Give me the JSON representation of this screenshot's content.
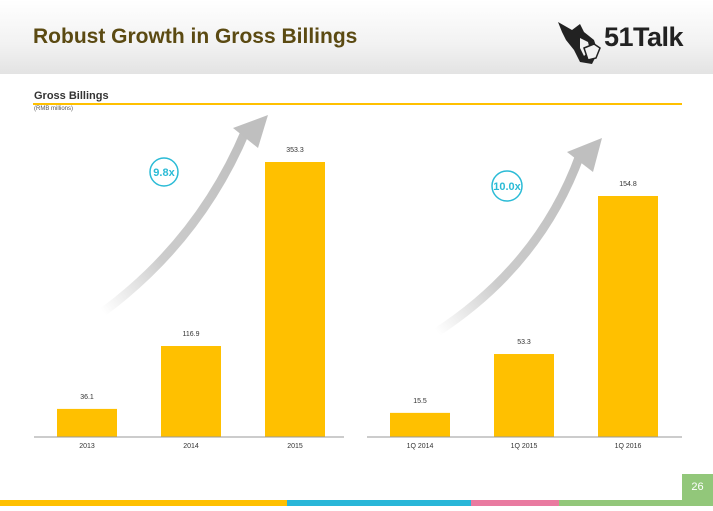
{
  "slide": {
    "title": "Robust Growth in Gross Billings",
    "logo_text": "51Talk",
    "page_number": "26"
  },
  "section": {
    "title": "Gross Billings",
    "subtitle": "(RMB millions)"
  },
  "colors": {
    "bar": "#ffc000",
    "arrow": "#bfbfbf",
    "badge": "#2bbbd6",
    "title": "#5b4a12",
    "footer": [
      "#ffc000",
      "#29b6d8",
      "#e97aa0",
      "#92c77a"
    ]
  },
  "chart_data": [
    {
      "type": "bar",
      "categories": [
        "2013",
        "2014",
        "2015"
      ],
      "values": [
        36.1,
        116.9,
        353.3
      ],
      "title": "",
      "xlabel": "",
      "ylabel": "",
      "ylim": [
        0,
        380
      ],
      "grid": false,
      "annotations": [
        {
          "text": "9.8x",
          "style": "circle"
        }
      ]
    },
    {
      "type": "bar",
      "categories": [
        "1Q 2014",
        "1Q 2015",
        "1Q 2016"
      ],
      "values": [
        15.5,
        53.3,
        154.8
      ],
      "title": "",
      "xlabel": "",
      "ylabel": "",
      "ylim": [
        0,
        210
      ],
      "grid": false,
      "annotations": [
        {
          "text": "10.0x",
          "style": "circle"
        }
      ]
    }
  ]
}
